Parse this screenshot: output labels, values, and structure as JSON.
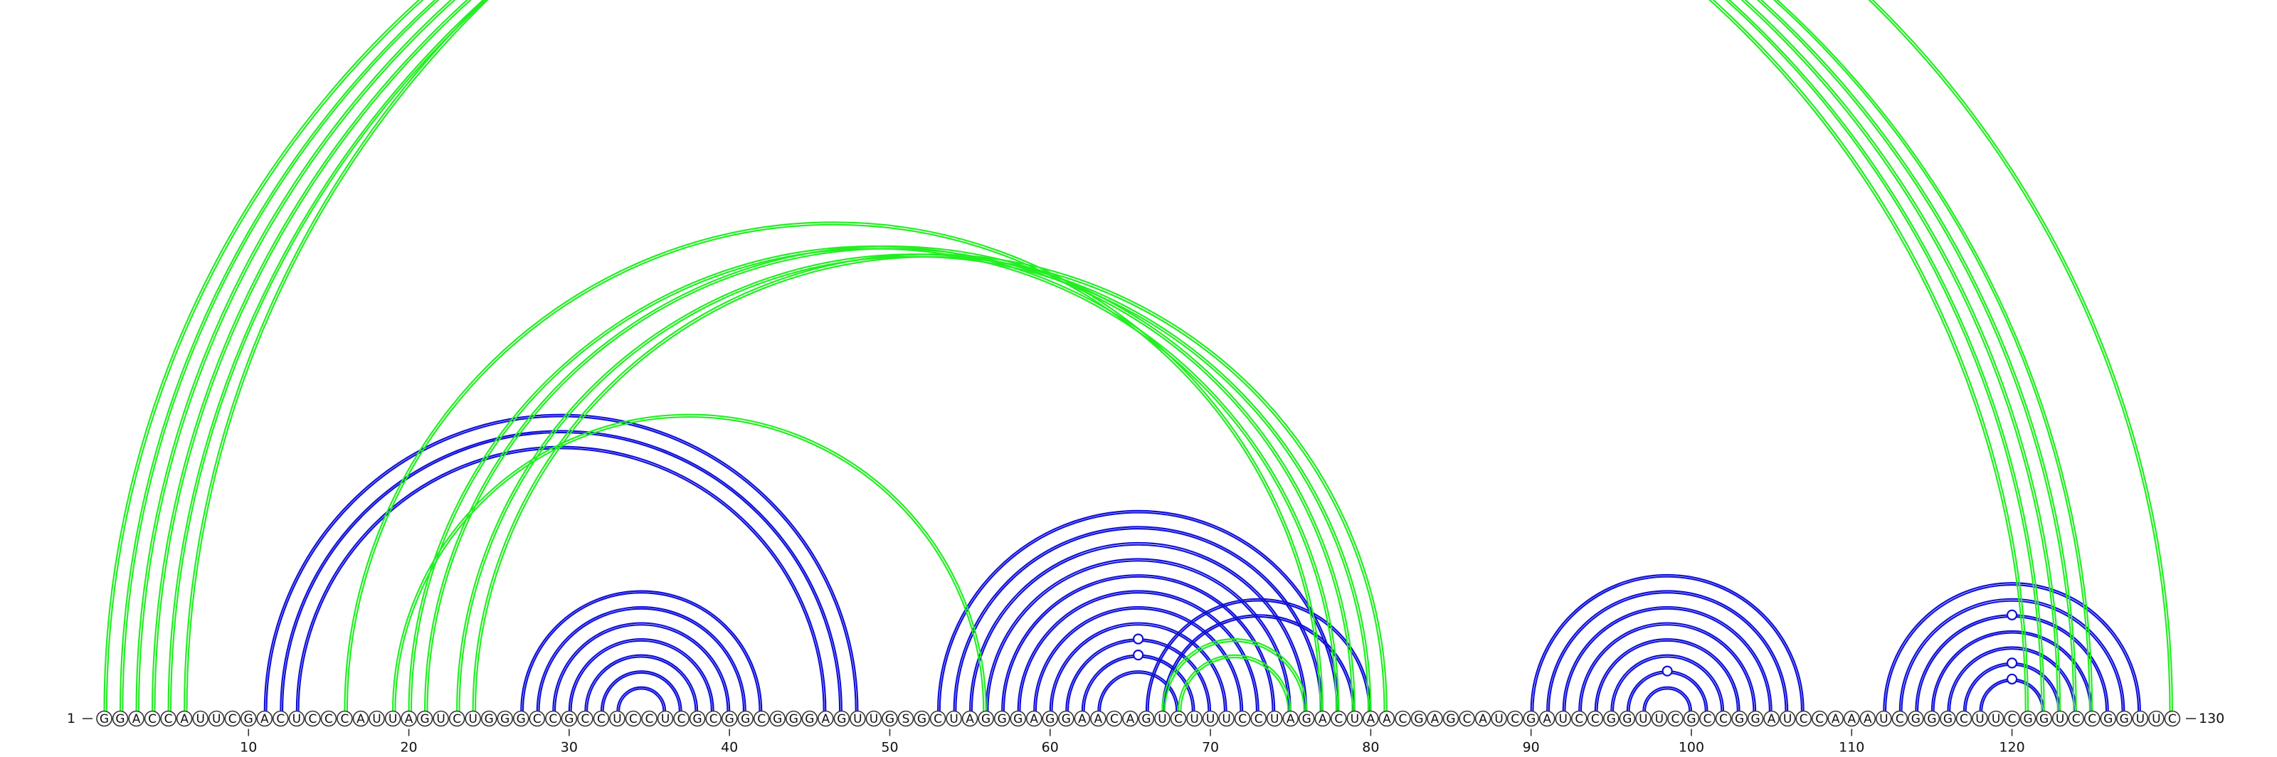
{
  "start_label": "1",
  "end_label": "130",
  "sequence": "GGACCAUUCGACUCCCAUUAGUCUGGGCCGCCUCCUCGCGGCGGGAGUUGSGCUAGGGAGGAACAGUCUUUCCUAGACUAACGAGCAUCGAUCCGGUUCGCCGGAUCCAAAUCGGGCUUCGGUCCGGUUC",
  "ticks": [
    10,
    20,
    30,
    40,
    50,
    60,
    70,
    80,
    90,
    100,
    110,
    120
  ],
  "colors": {
    "structure_a": "#1010d8",
    "structure_b": "#22ee22"
  },
  "structure_a_pairs": [
    [
      11,
      48
    ],
    [
      12,
      47
    ],
    [
      13,
      46
    ],
    [
      27,
      42
    ],
    [
      28,
      41
    ],
    [
      29,
      40
    ],
    [
      30,
      39
    ],
    [
      31,
      38
    ],
    [
      32,
      37
    ],
    [
      33,
      36
    ],
    [
      53,
      78
    ],
    [
      54,
      77
    ],
    [
      55,
      76
    ],
    [
      56,
      75
    ],
    [
      57,
      74
    ],
    [
      58,
      73
    ],
    [
      59,
      72
    ],
    [
      60,
      71
    ],
    [
      61,
      70
    ],
    [
      62,
      69
    ],
    [
      63,
      68
    ],
    [
      66,
      80
    ],
    [
      67,
      79
    ],
    [
      90,
      107
    ],
    [
      91,
      106
    ],
    [
      92,
      105
    ],
    [
      93,
      104
    ],
    [
      94,
      103
    ],
    [
      95,
      102
    ],
    [
      96,
      101
    ],
    [
      97,
      100
    ],
    [
      112,
      128
    ],
    [
      113,
      127
    ],
    [
      114,
      126
    ],
    [
      115,
      125
    ],
    [
      116,
      124
    ],
    [
      117,
      123
    ],
    [
      118,
      122
    ]
  ],
  "structure_b_pairs": [
    [
      1,
      121
    ],
    [
      2,
      122
    ],
    [
      3,
      123
    ],
    [
      4,
      124
    ],
    [
      5,
      125
    ],
    [
      16,
      77
    ],
    [
      20,
      78
    ],
    [
      21,
      79
    ],
    [
      23,
      80
    ],
    [
      24,
      81
    ],
    [
      19,
      56
    ],
    [
      6,
      130
    ],
    [
      67,
      76
    ],
    [
      68,
      75
    ]
  ],
  "markers": [
    {
      "color": "structure_b",
      "i": 6,
      "j": 130
    },
    {
      "color": "structure_a",
      "i": 61,
      "j": 70
    },
    {
      "color": "structure_a",
      "i": 62,
      "j": 69
    },
    {
      "color": "structure_a",
      "i": 96,
      "j": 101
    },
    {
      "color": "structure_a",
      "i": 114,
      "j": 126
    },
    {
      "color": "structure_a",
      "i": 117,
      "j": 123
    },
    {
      "color": "structure_a",
      "i": 118,
      "j": 122
    }
  ]
}
